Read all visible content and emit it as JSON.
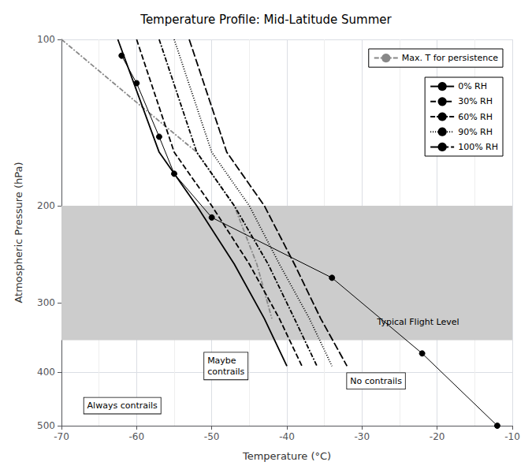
{
  "chart_data": {
    "type": "line",
    "title": "Temperature Profile: Mid-Latitude Summer",
    "xlabel": "Temperature (°C)",
    "ylabel": "Atmospheric Pressure (hPa)",
    "xlim": [
      -70,
      -10
    ],
    "ylim": [
      500,
      100
    ],
    "xticks": [
      -70,
      -60,
      -50,
      -40,
      -30,
      -20,
      -10
    ],
    "yticks": [
      100,
      200,
      300,
      400,
      500
    ],
    "log": "y",
    "grid": true,
    "legend": "upper right",
    "band": {
      "values": [
        200,
        350
      ],
      "color": "#cccccc"
    },
    "series": [
      {
        "name": "Max. T for persistence",
        "color": "#888888",
        "line_style": "dashdot",
        "x": [
          -70,
          -60,
          -52,
          -47,
          -44,
          -42
        ],
        "values": [
          100,
          130,
          160,
          200,
          255,
          320
        ]
      },
      {
        "name": "0% RH",
        "color": "#000000",
        "line_style": "solid",
        "x": [
          -62.5,
          -57,
          -52,
          -47,
          -43,
          -40
        ],
        "values": [
          100,
          160,
          200,
          255,
          320,
          390
        ]
      },
      {
        "name": "30% RH",
        "color": "#000000",
        "line_style": "dashed",
        "x": [
          -60,
          -55,
          -50,
          -45,
          -41,
          -38
        ],
        "values": [
          100,
          160,
          200,
          255,
          320,
          390
        ]
      },
      {
        "name": "60% RH",
        "color": "#000000",
        "line_style": "dashdot",
        "x": [
          -57,
          -52,
          -47,
          -42.5,
          -39,
          -36
        ],
        "values": [
          100,
          160,
          200,
          255,
          320,
          390
        ]
      },
      {
        "name": "90% RH",
        "color": "#000000",
        "line_style": "dotted",
        "x": [
          -55,
          -50,
          -45,
          -41,
          -37,
          -34
        ],
        "values": [
          100,
          160,
          200,
          255,
          320,
          390
        ]
      },
      {
        "name": "100% RH",
        "color": "#000000",
        "line_style": "longdash",
        "x": [
          -53,
          -48,
          -43,
          -39,
          -35.5,
          -32
        ],
        "values": [
          100,
          160,
          200,
          255,
          320,
          390
        ]
      },
      {
        "color": "#000000",
        "line_style": "solid",
        "marker": "circle",
        "x": [
          -62,
          -60,
          -57,
          -55,
          -50,
          -34,
          -22,
          -12
        ],
        "values": [
          107,
          120,
          150,
          175,
          210,
          270,
          370,
          500
        ]
      }
    ],
    "annotations": [
      {
        "text": "Always contrails",
        "x": -67,
        "y": 460,
        "boxed": true
      },
      {
        "text": "Maybe\ncontrails",
        "x": -51,
        "y": 390,
        "boxed": true
      },
      {
        "text": "No contrails",
        "x": -32,
        "y": 415,
        "boxed": true
      },
      {
        "text": "Typical Flight Level",
        "x": -28,
        "y": 325,
        "boxed": false
      }
    ]
  }
}
